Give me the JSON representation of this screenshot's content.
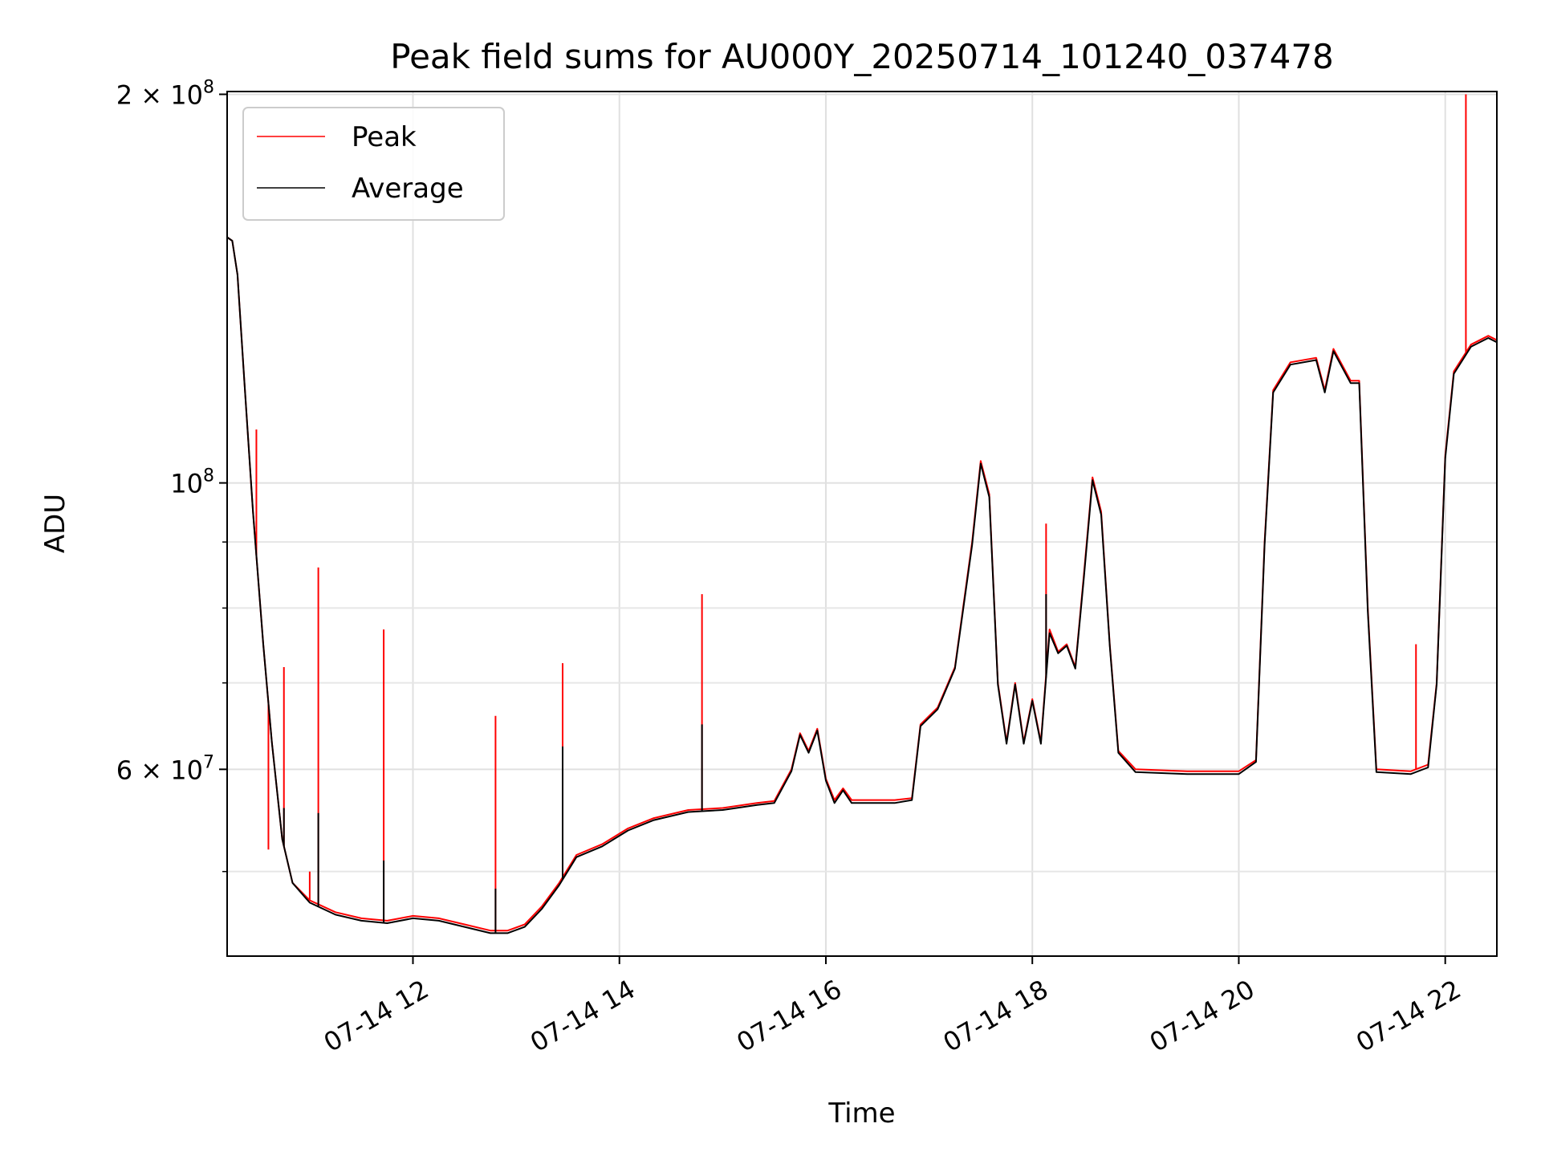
{
  "chart_data": {
    "type": "line",
    "title": "Peak field sums for AU000Y_20250714_101240_037478",
    "xlabel": "Time",
    "ylabel": "ADU",
    "yscale": "log",
    "ylim": [
      43000000,
      201000000
    ],
    "xlim": [
      "2025-07-14 10:12",
      "2025-07-14 22:30"
    ],
    "grid": true,
    "legend_position": "upper-left",
    "xticks": [
      {
        "value": "2025-07-14 12:00",
        "label": "07-14 12"
      },
      {
        "value": "2025-07-14 14:00",
        "label": "07-14 14"
      },
      {
        "value": "2025-07-14 16:00",
        "label": "07-14 16"
      },
      {
        "value": "2025-07-14 18:00",
        "label": "07-14 18"
      },
      {
        "value": "2025-07-14 20:00",
        "label": "07-14 20"
      },
      {
        "value": "2025-07-14 22:00",
        "label": "07-14 22"
      }
    ],
    "yticks_major": [
      {
        "value": 60000000,
        "base": "6 × 10",
        "exp": "7"
      },
      {
        "value": 100000000,
        "base": "10",
        "exp": "8"
      },
      {
        "value": 200000000,
        "base": "2 × 10",
        "exp": "8"
      }
    ],
    "yticks_minor": [
      50000000,
      70000000,
      80000000,
      90000000
    ],
    "series": [
      {
        "name": "Peak",
        "color": "#ff0000",
        "points": [
          [
            "2025-07-14 10:12",
            155000000
          ],
          [
            "2025-07-14 10:15",
            154000000
          ],
          [
            "2025-07-14 10:18",
            145000000
          ],
          [
            "2025-07-14 10:22",
            120000000
          ],
          [
            "2025-07-14 10:27",
            95000000
          ],
          [
            "2025-07-14 10:33",
            75000000
          ],
          [
            "2025-07-14 10:38",
            63000000
          ],
          [
            "2025-07-14 10:44",
            53000000
          ],
          [
            "2025-07-14 10:50",
            49000000
          ],
          [
            "2025-07-14 11:00",
            47500000
          ],
          [
            "2025-07-14 11:15",
            46500000
          ],
          [
            "2025-07-14 11:30",
            46000000
          ],
          [
            "2025-07-14 11:45",
            45800000
          ],
          [
            "2025-07-14 12:00",
            46200000
          ],
          [
            "2025-07-14 12:15",
            46000000
          ],
          [
            "2025-07-14 12:30",
            45500000
          ],
          [
            "2025-07-14 12:45",
            45000000
          ],
          [
            "2025-07-14 12:55",
            45000000
          ],
          [
            "2025-07-14 13:05",
            45500000
          ],
          [
            "2025-07-14 13:15",
            47000000
          ],
          [
            "2025-07-14 13:25",
            49000000
          ],
          [
            "2025-07-14 13:35",
            51500000
          ],
          [
            "2025-07-14 13:50",
            52500000
          ],
          [
            "2025-07-14 14:05",
            54000000
          ],
          [
            "2025-07-14 14:20",
            55000000
          ],
          [
            "2025-07-14 14:40",
            55800000
          ],
          [
            "2025-07-14 15:00",
            56000000
          ],
          [
            "2025-07-14 15:20",
            56500000
          ],
          [
            "2025-07-14 15:30",
            56700000
          ],
          [
            "2025-07-14 15:40",
            60000000
          ],
          [
            "2025-07-14 15:45",
            64000000
          ],
          [
            "2025-07-14 15:50",
            62000000
          ],
          [
            "2025-07-14 15:55",
            64500000
          ],
          [
            "2025-07-14 16:00",
            59000000
          ],
          [
            "2025-07-14 16:05",
            56800000
          ],
          [
            "2025-07-14 16:10",
            58000000
          ],
          [
            "2025-07-14 16:15",
            56800000
          ],
          [
            "2025-07-14 16:40",
            56800000
          ],
          [
            "2025-07-14 16:50",
            57000000
          ],
          [
            "2025-07-14 16:55",
            65000000
          ],
          [
            "2025-07-14 17:05",
            67000000
          ],
          [
            "2025-07-14 17:15",
            72000000
          ],
          [
            "2025-07-14 17:25",
            90000000
          ],
          [
            "2025-07-14 17:30",
            104000000
          ],
          [
            "2025-07-14 17:35",
            98000000
          ],
          [
            "2025-07-14 17:40",
            70000000
          ],
          [
            "2025-07-14 17:45",
            63000000
          ],
          [
            "2025-07-14 17:50",
            70000000
          ],
          [
            "2025-07-14 17:55",
            63000000
          ],
          [
            "2025-07-14 18:00",
            68000000
          ],
          [
            "2025-07-14 18:05",
            63000000
          ],
          [
            "2025-07-14 18:10",
            77000000
          ],
          [
            "2025-07-14 18:15",
            74000000
          ],
          [
            "2025-07-14 18:20",
            75000000
          ],
          [
            "2025-07-14 18:25",
            72000000
          ],
          [
            "2025-07-14 18:30",
            85000000
          ],
          [
            "2025-07-14 18:35",
            101000000
          ],
          [
            "2025-07-14 18:40",
            95000000
          ],
          [
            "2025-07-14 18:45",
            75000000
          ],
          [
            "2025-07-14 18:50",
            62000000
          ],
          [
            "2025-07-14 19:00",
            60000000
          ],
          [
            "2025-07-14 19:30",
            59800000
          ],
          [
            "2025-07-14 20:00",
            59800000
          ],
          [
            "2025-07-14 20:10",
            61000000
          ],
          [
            "2025-07-14 20:15",
            90000000
          ],
          [
            "2025-07-14 20:20",
            118000000
          ],
          [
            "2025-07-14 20:30",
            124000000
          ],
          [
            "2025-07-14 20:45",
            125000000
          ],
          [
            "2025-07-14 20:50",
            118000000
          ],
          [
            "2025-07-14 20:55",
            127000000
          ],
          [
            "2025-07-14 21:05",
            120000000
          ],
          [
            "2025-07-14 21:10",
            120000000
          ],
          [
            "2025-07-14 21:15",
            80000000
          ],
          [
            "2025-07-14 21:20",
            60000000
          ],
          [
            "2025-07-14 21:40",
            59800000
          ],
          [
            "2025-07-14 21:50",
            60500000
          ],
          [
            "2025-07-14 21:55",
            70000000
          ],
          [
            "2025-07-14 22:00",
            105000000
          ],
          [
            "2025-07-14 22:05",
            122000000
          ],
          [
            "2025-07-14 22:15",
            128000000
          ],
          [
            "2025-07-14 22:25",
            130000000
          ],
          [
            "2025-07-14 22:30",
            129000000
          ]
        ],
        "spikes": [
          [
            "2025-07-14 10:29",
            110000000
          ],
          [
            "2025-07-14 10:36",
            52000000
          ],
          [
            "2025-07-14 10:45",
            72000000
          ],
          [
            "2025-07-14 11:00",
            50000000
          ],
          [
            "2025-07-14 11:05",
            86000000
          ],
          [
            "2025-07-14 11:43",
            77000000
          ],
          [
            "2025-07-14 12:48",
            66000000
          ],
          [
            "2025-07-14 13:27",
            72500000
          ],
          [
            "2025-07-14 14:48",
            82000000
          ],
          [
            "2025-07-14 18:08",
            93000000
          ],
          [
            "2025-07-14 21:43",
            75000000
          ],
          [
            "2025-07-14 22:12",
            200000000
          ]
        ]
      },
      {
        "name": "Average",
        "color": "#000000",
        "points": [
          [
            "2025-07-14 10:12",
            155000000
          ],
          [
            "2025-07-14 10:15",
            154000000
          ],
          [
            "2025-07-14 10:18",
            145000000
          ],
          [
            "2025-07-14 10:22",
            120000000
          ],
          [
            "2025-07-14 10:27",
            95000000
          ],
          [
            "2025-07-14 10:33",
            75000000
          ],
          [
            "2025-07-14 10:38",
            63000000
          ],
          [
            "2025-07-14 10:44",
            53000000
          ],
          [
            "2025-07-14 10:50",
            49000000
          ],
          [
            "2025-07-14 11:00",
            47300000
          ],
          [
            "2025-07-14 11:15",
            46300000
          ],
          [
            "2025-07-14 11:30",
            45800000
          ],
          [
            "2025-07-14 11:45",
            45600000
          ],
          [
            "2025-07-14 12:00",
            46000000
          ],
          [
            "2025-07-14 12:15",
            45800000
          ],
          [
            "2025-07-14 12:30",
            45300000
          ],
          [
            "2025-07-14 12:45",
            44800000
          ],
          [
            "2025-07-14 12:55",
            44800000
          ],
          [
            "2025-07-14 13:05",
            45300000
          ],
          [
            "2025-07-14 13:15",
            46800000
          ],
          [
            "2025-07-14 13:25",
            48800000
          ],
          [
            "2025-07-14 13:35",
            51300000
          ],
          [
            "2025-07-14 13:50",
            52300000
          ],
          [
            "2025-07-14 14:05",
            53800000
          ],
          [
            "2025-07-14 14:20",
            54800000
          ],
          [
            "2025-07-14 14:40",
            55600000
          ],
          [
            "2025-07-14 15:00",
            55800000
          ],
          [
            "2025-07-14 15:20",
            56300000
          ],
          [
            "2025-07-14 15:30",
            56500000
          ],
          [
            "2025-07-14 15:40",
            59800000
          ],
          [
            "2025-07-14 15:45",
            63800000
          ],
          [
            "2025-07-14 15:50",
            61800000
          ],
          [
            "2025-07-14 15:55",
            64300000
          ],
          [
            "2025-07-14 16:00",
            58800000
          ],
          [
            "2025-07-14 16:05",
            56500000
          ],
          [
            "2025-07-14 16:10",
            57800000
          ],
          [
            "2025-07-14 16:15",
            56500000
          ],
          [
            "2025-07-14 16:40",
            56500000
          ],
          [
            "2025-07-14 16:50",
            56800000
          ],
          [
            "2025-07-14 16:55",
            64800000
          ],
          [
            "2025-07-14 17:05",
            66800000
          ],
          [
            "2025-07-14 17:15",
            71800000
          ],
          [
            "2025-07-14 17:25",
            89500000
          ],
          [
            "2025-07-14 17:30",
            103500000
          ],
          [
            "2025-07-14 17:35",
            97500000
          ],
          [
            "2025-07-14 17:40",
            69800000
          ],
          [
            "2025-07-14 17:45",
            62800000
          ],
          [
            "2025-07-14 17:50",
            69800000
          ],
          [
            "2025-07-14 17:55",
            62800000
          ],
          [
            "2025-07-14 18:00",
            67800000
          ],
          [
            "2025-07-14 18:05",
            62800000
          ],
          [
            "2025-07-14 18:10",
            76500000
          ],
          [
            "2025-07-14 18:15",
            73800000
          ],
          [
            "2025-07-14 18:20",
            74800000
          ],
          [
            "2025-07-14 18:25",
            71800000
          ],
          [
            "2025-07-14 18:30",
            84500000
          ],
          [
            "2025-07-14 18:35",
            100500000
          ],
          [
            "2025-07-14 18:40",
            94500000
          ],
          [
            "2025-07-14 18:45",
            74800000
          ],
          [
            "2025-07-14 18:50",
            61800000
          ],
          [
            "2025-07-14 19:00",
            59700000
          ],
          [
            "2025-07-14 19:30",
            59500000
          ],
          [
            "2025-07-14 20:00",
            59500000
          ],
          [
            "2025-07-14 20:10",
            60800000
          ],
          [
            "2025-07-14 20:15",
            89500000
          ],
          [
            "2025-07-14 20:20",
            117500000
          ],
          [
            "2025-07-14 20:30",
            123500000
          ],
          [
            "2025-07-14 20:45",
            124500000
          ],
          [
            "2025-07-14 20:50",
            117500000
          ],
          [
            "2025-07-14 20:55",
            126500000
          ],
          [
            "2025-07-14 21:05",
            119500000
          ],
          [
            "2025-07-14 21:10",
            119500000
          ],
          [
            "2025-07-14 21:15",
            79500000
          ],
          [
            "2025-07-14 21:20",
            59700000
          ],
          [
            "2025-07-14 21:40",
            59500000
          ],
          [
            "2025-07-14 21:50",
            60200000
          ],
          [
            "2025-07-14 21:55",
            69800000
          ],
          [
            "2025-07-14 22:00",
            104500000
          ],
          [
            "2025-07-14 22:05",
            121500000
          ],
          [
            "2025-07-14 22:15",
            127500000
          ],
          [
            "2025-07-14 22:25",
            129500000
          ],
          [
            "2025-07-14 22:30",
            128500000
          ]
        ],
        "spikes": [
          [
            "2025-07-14 10:45",
            56000000
          ],
          [
            "2025-07-14 11:05",
            55500000
          ],
          [
            "2025-07-14 11:43",
            51000000
          ],
          [
            "2025-07-14 12:48",
            48500000
          ],
          [
            "2025-07-14 13:27",
            62500000
          ],
          [
            "2025-07-14 14:48",
            65000000
          ],
          [
            "2025-07-14 18:08",
            82000000
          ]
        ]
      }
    ]
  }
}
